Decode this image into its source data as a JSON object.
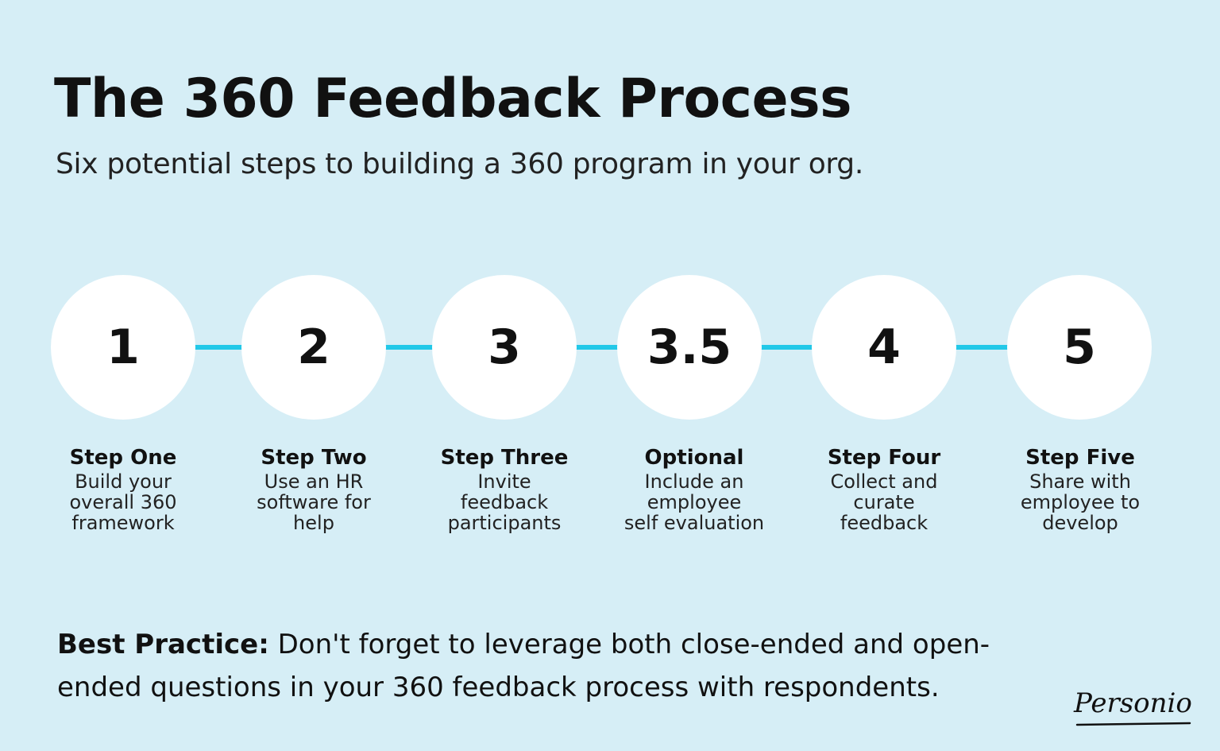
{
  "title": "The 360 Feedback Process",
  "subtitle": "Six potential steps to building a 360 program in your org.",
  "steps": [
    {
      "number": "1",
      "title": "Step One",
      "desc": "Build your\noverall 360\nframework"
    },
    {
      "number": "2",
      "title": "Step Two",
      "desc": "Use an HR\nsoftware for\nhelp"
    },
    {
      "number": "3",
      "title": "Step Three",
      "desc": "Invite\nfeedback\nparticipants"
    },
    {
      "number": "3.5",
      "title": "Optional",
      "desc": "Include an\nemployee\nself evaluation"
    },
    {
      "number": "4",
      "title": "Step Four",
      "desc": "Collect and\ncurate\nfeedback"
    },
    {
      "number": "5",
      "title": "Step Five",
      "desc": "Share with\nemployee to\ndevelop"
    }
  ],
  "best_practice": {
    "label": "Best Practice:",
    "text": " Don't forget to leverage both close-ended and open-ended questions in your 360 feedback process with respondents."
  },
  "logo": {
    "text": "Personio"
  },
  "colors": {
    "background": "#d6eef6",
    "connector": "#22c8e8",
    "circle": "#ffffff",
    "text": "#111111"
  }
}
